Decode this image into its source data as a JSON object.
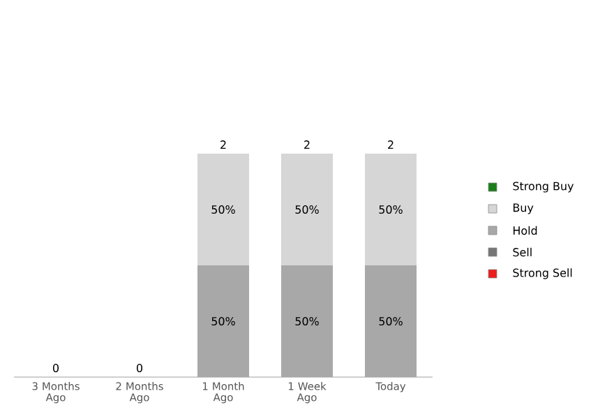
{
  "chart_data": {
    "type": "bar",
    "stacked": true,
    "tick_labels": "x",
    "legend": "right",
    "categories": [
      "3 Months Ago",
      "2 Months Ago",
      "1 Month Ago",
      "1 Week Ago",
      "Today"
    ],
    "series": [
      {
        "name": "Strong Sell",
        "color": "#ee1c1c",
        "values": [
          0,
          0,
          0,
          0,
          0
        ]
      },
      {
        "name": "Sell",
        "color": "#767676",
        "values": [
          0,
          0,
          0,
          0,
          0
        ]
      },
      {
        "name": "Hold",
        "color": "#a8a8a8",
        "values": [
          0,
          0,
          50,
          50,
          50
        ],
        "value_labels": [
          null,
          null,
          "50%",
          "50%",
          "50%"
        ]
      },
      {
        "name": "Buy",
        "color": "#d6d6d6",
        "values": [
          0,
          0,
          50,
          50,
          50
        ],
        "value_labels": [
          null,
          null,
          "50%",
          "50%",
          "50%"
        ]
      },
      {
        "name": "Strong Buy",
        "color": "#1a7f1a",
        "values": [
          0,
          0,
          0,
          0,
          0
        ]
      }
    ],
    "annotations": [
      {
        "text": "0",
        "x": "3 Months Ago",
        "y": 0
      },
      {
        "text": "0",
        "x": "2 Months Ago",
        "y": 0
      },
      {
        "text": "2",
        "x": "1 Month Ago",
        "y": 100
      },
      {
        "text": "2",
        "x": "1 Week Ago",
        "y": 100
      },
      {
        "text": "2",
        "x": "Today",
        "y": 100
      }
    ]
  }
}
